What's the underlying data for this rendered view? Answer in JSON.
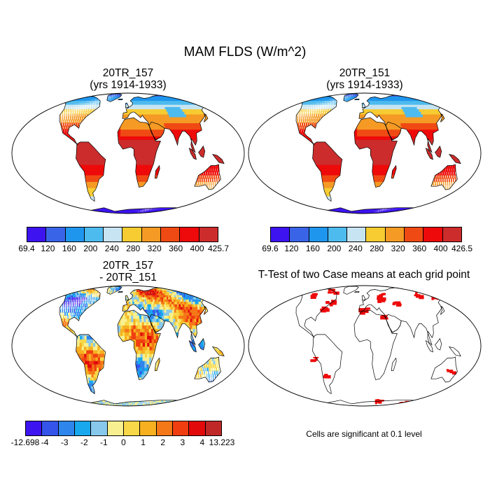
{
  "title": "MAM FLDS (W/m^2)",
  "panels": [
    {
      "title_line1": "20TR_157",
      "title_line2": "(yrs 1914-1933)",
      "colormap": "abs"
    },
    {
      "title_line1": "20TR_151",
      "title_line2": "(yrs 1914-1933)",
      "colormap": "abs"
    },
    {
      "title_line1": "20TR_157",
      "title_line2": "- 20TR_151",
      "colormap": "diff"
    },
    {
      "title_line1": "T-Test of two Case means at each grid point",
      "title_line2": "",
      "colormap": "ttest"
    }
  ],
  "colorbars": {
    "abs1": {
      "colors": [
        "#3d14f0",
        "#3a64e8",
        "#1e96ee",
        "#4ebbee",
        "#c6e4f2",
        "#f6cc32",
        "#f59a24",
        "#f04a14",
        "#ee0a0a",
        "#cc2c2c"
      ],
      "labels": [
        "69.4",
        "120",
        "160",
        "200",
        "240",
        "280",
        "320",
        "360",
        "400",
        "425.7"
      ]
    },
    "abs2": {
      "colors": [
        "#3d14f0",
        "#3a64e8",
        "#1e96ee",
        "#4ebbee",
        "#c6e4f2",
        "#f6cc32",
        "#f59a24",
        "#f04a14",
        "#ee0a0a",
        "#cc2c2c"
      ],
      "labels": [
        "69.6",
        "120",
        "160",
        "200",
        "240",
        "280",
        "320",
        "360",
        "400",
        "426.5"
      ]
    },
    "diff": {
      "colors": [
        "#3d14f0",
        "#3454ea",
        "#2e86ec",
        "#18a8ee",
        "#88c8ec",
        "#f8f090",
        "#f8d848",
        "#f6b020",
        "#f47818",
        "#f03e10",
        "#e20a0a",
        "#c02828"
      ],
      "labels": [
        "-12.698",
        "-4",
        "-3",
        "-2",
        "-1",
        "0",
        "1",
        "2",
        "3",
        "4",
        "13.223"
      ]
    }
  },
  "significance_note": "Cells are significant at 0.1 level"
}
